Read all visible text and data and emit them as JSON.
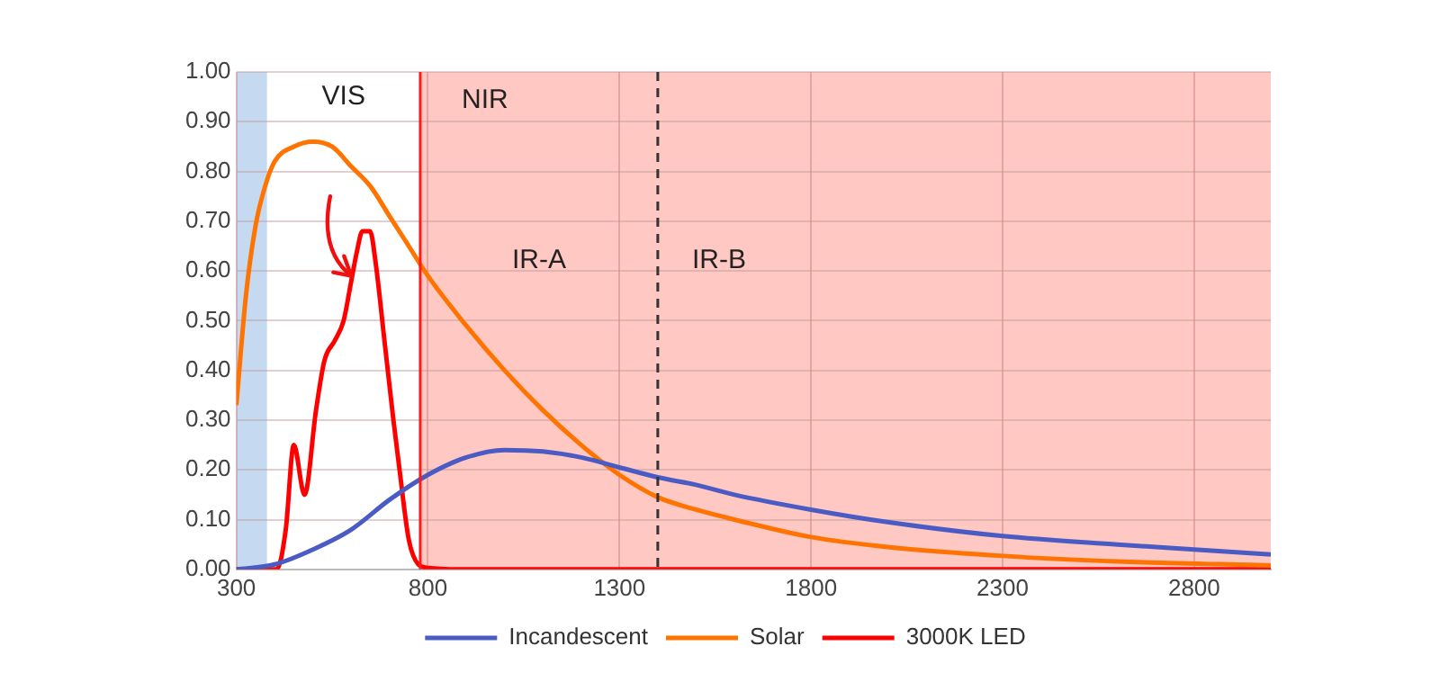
{
  "chart_data": {
    "type": "line",
    "xlim": [
      300,
      3000
    ],
    "xticks": [
      300,
      800,
      1300,
      1800,
      2300,
      2800
    ],
    "ylim": [
      0,
      1
    ],
    "yticks": [
      {
        "value": 0,
        "label": "0.00"
      },
      {
        "value": 0.1,
        "label": "0.10"
      },
      {
        "value": 0.2,
        "label": "0.20"
      },
      {
        "value": 0.3,
        "label": "0.30"
      },
      {
        "value": 0.4,
        "label": "0.40"
      },
      {
        "value": 0.5,
        "label": "0.50"
      },
      {
        "value": 0.6,
        "label": "0.60"
      },
      {
        "value": 0.7,
        "label": "0.70"
      },
      {
        "value": 0.8,
        "label": "0.80"
      },
      {
        "value": 0.9,
        "label": "0.90"
      },
      {
        "value": 1,
        "label": "1.00"
      }
    ],
    "grid": true,
    "legend": "bottom",
    "marker": "none",
    "line_style": "solid",
    "series": [
      {
        "name": "Incandescent",
        "color": "#4a5cc4",
        "x": [
          300,
          400,
          500,
          600,
          700,
          800,
          900,
          1000,
          1100,
          1200,
          1300,
          1400,
          1500,
          1600,
          1800,
          2000,
          2300,
          2600,
          2800,
          3000
        ],
        "values": [
          0,
          0.01,
          0.04,
          0.08,
          0.14,
          0.19,
          0.225,
          0.24,
          0.237,
          0.225,
          0.205,
          0.185,
          0.17,
          0.15,
          0.12,
          0.095,
          0.067,
          0.05,
          0.04,
          0.03
        ]
      },
      {
        "name": "Solar",
        "color": "#ff7300",
        "x": [
          300,
          325,
          350,
          375,
          400,
          450,
          500,
          550,
          600,
          650,
          700,
          750,
          800,
          900,
          1000,
          1100,
          1200,
          1300,
          1400,
          1500,
          1600,
          1800,
          2000,
          2300,
          2600,
          3000
        ],
        "values": [
          0.33,
          0.55,
          0.69,
          0.77,
          0.82,
          0.85,
          0.86,
          0.85,
          0.81,
          0.77,
          0.71,
          0.65,
          0.59,
          0.49,
          0.4,
          0.32,
          0.25,
          0.19,
          0.145,
          0.12,
          0.1,
          0.065,
          0.045,
          0.027,
          0.016,
          0.008
        ]
      },
      {
        "name": "3000K LED",
        "color": "#ff0000",
        "x": [
          300,
          405,
          429,
          450,
          478,
          508,
          530,
          557,
          580,
          600,
          615,
          629,
          649,
          663,
          688,
          710,
          726,
          750,
          775,
          800,
          900,
          3000
        ],
        "values": [
          0,
          0,
          0.08,
          0.25,
          0.15,
          0.32,
          0.42,
          0.46,
          0.5,
          0.58,
          0.64,
          0.68,
          0.68,
          0.62,
          0.45,
          0.3,
          0.2,
          0.06,
          0.01,
          0.003,
          0,
          0
        ]
      }
    ],
    "bands": [
      {
        "axis": "x",
        "from": 300,
        "to": 380,
        "color": "#c5d9f1"
      },
      {
        "axis": "x",
        "from": 780,
        "to": 3000,
        "label": "NIR",
        "color": "#ffc8c2"
      }
    ],
    "ref_lines": [
      {
        "axis": "x",
        "value": 1400,
        "color": "#333333",
        "line_style": "dashed"
      },
      {
        "axis": "x",
        "value": 780,
        "color": "#ff1a1a",
        "line_style": "solid"
      }
    ],
    "annotations": [
      "VIS",
      "IR-A",
      "IR-B"
    ]
  }
}
